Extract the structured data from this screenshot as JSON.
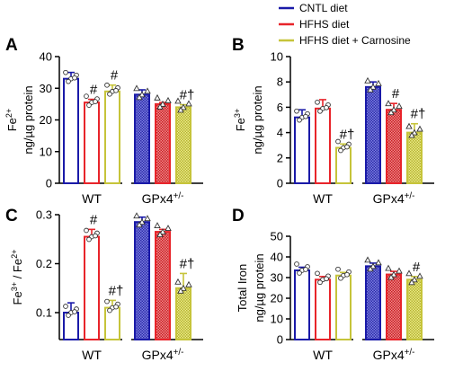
{
  "legend": [
    {
      "label": "CNTL diet",
      "color": "#1a1aa8"
    },
    {
      "label": "HFHS diet",
      "color": "#e8242a"
    },
    {
      "label": "HFHS diet + Carnosine",
      "color": "#c6c43a"
    }
  ],
  "chart_data": [
    {
      "type": "bar",
      "panel": "A",
      "ylabel_lines": [
        "Fe2+",
        "ng/µg protein"
      ],
      "ylim": [
        0,
        40
      ],
      "yticks": [
        "0",
        "10",
        "20",
        "30",
        "40"
      ],
      "groups": [
        "WT",
        "GPx4+/-"
      ],
      "series": [
        {
          "name": "CNTL diet",
          "values": [
            33,
            28
          ],
          "errors": [
            2,
            1.5
          ]
        },
        {
          "name": "HFHS diet",
          "values": [
            25.5,
            25
          ],
          "errors": [
            1,
            0.5
          ]
        },
        {
          "name": "HFHS diet + Carnosine",
          "values": [
            29,
            24
          ],
          "errors": [
            2,
            0.8
          ]
        }
      ],
      "annotations": [
        [
          "",
          "#",
          "#"
        ],
        [
          "",
          "",
          "#†"
        ]
      ]
    },
    {
      "type": "bar",
      "panel": "B",
      "ylabel_lines": [
        "Fe3+",
        "ng/µg protein"
      ],
      "ylim": [
        0,
        10
      ],
      "yticks": [
        "0",
        "2",
        "4",
        "6",
        "8",
        "10"
      ],
      "groups": [
        "WT",
        "GPx4+/-"
      ],
      "series": [
        {
          "name": "CNTL diet",
          "values": [
            5.2,
            7.6
          ],
          "errors": [
            0.6,
            0.4
          ]
        },
        {
          "name": "HFHS diet",
          "values": [
            5.9,
            5.8
          ],
          "errors": [
            0.7,
            0.5
          ]
        },
        {
          "name": "HFHS diet + Carnosine",
          "values": [
            2.8,
            4.0
          ],
          "errors": [
            0.3,
            0.7
          ]
        }
      ],
      "annotations": [
        [
          "",
          "",
          "#†"
        ],
        [
          "",
          "#",
          "#†"
        ]
      ]
    },
    {
      "type": "bar",
      "panel": "C",
      "ylabel_lines": [
        "Fe3+ / Fe2+"
      ],
      "ylim": [
        0,
        0.3
      ],
      "yticks": [
        "0.1",
        "0.2",
        "0.3"
      ],
      "groups": [
        "WT",
        "GPx4+/-"
      ],
      "series": [
        {
          "name": "CNTL diet",
          "values": [
            0.1,
            0.285
          ],
          "errors": [
            0.02,
            0.01
          ]
        },
        {
          "name": "HFHS diet",
          "values": [
            0.255,
            0.265
          ],
          "errors": [
            0.015,
            0.005
          ]
        },
        {
          "name": "HFHS diet + Carnosine",
          "values": [
            0.11,
            0.15
          ],
          "errors": [
            0.015,
            0.03
          ]
        }
      ],
      "annotations": [
        [
          "",
          "#",
          "#†"
        ],
        [
          "",
          "",
          "#†"
        ]
      ]
    },
    {
      "type": "bar",
      "panel": "D",
      "ylabel_lines": [
        "Total Iron",
        "ng/µg protein"
      ],
      "ylim": [
        0,
        50
      ],
      "yticks": [
        "0",
        "10",
        "20",
        "30",
        "40",
        "50"
      ],
      "groups": [
        "WT",
        "GPx4+/-"
      ],
      "series": [
        {
          "name": "CNTL diet",
          "values": [
            33.5,
            35.5
          ],
          "errors": [
            1.5,
            1.5
          ]
        },
        {
          "name": "HFHS diet",
          "values": [
            29,
            31.5
          ],
          "errors": [
            1.5,
            1.5
          ]
        },
        {
          "name": "HFHS diet + Carnosine",
          "values": [
            31,
            29
          ],
          "errors": [
            1.5,
            1.5
          ]
        }
      ],
      "annotations": [
        [
          "",
          "",
          ""
        ],
        [
          "",
          "",
          "#"
        ]
      ]
    }
  ]
}
